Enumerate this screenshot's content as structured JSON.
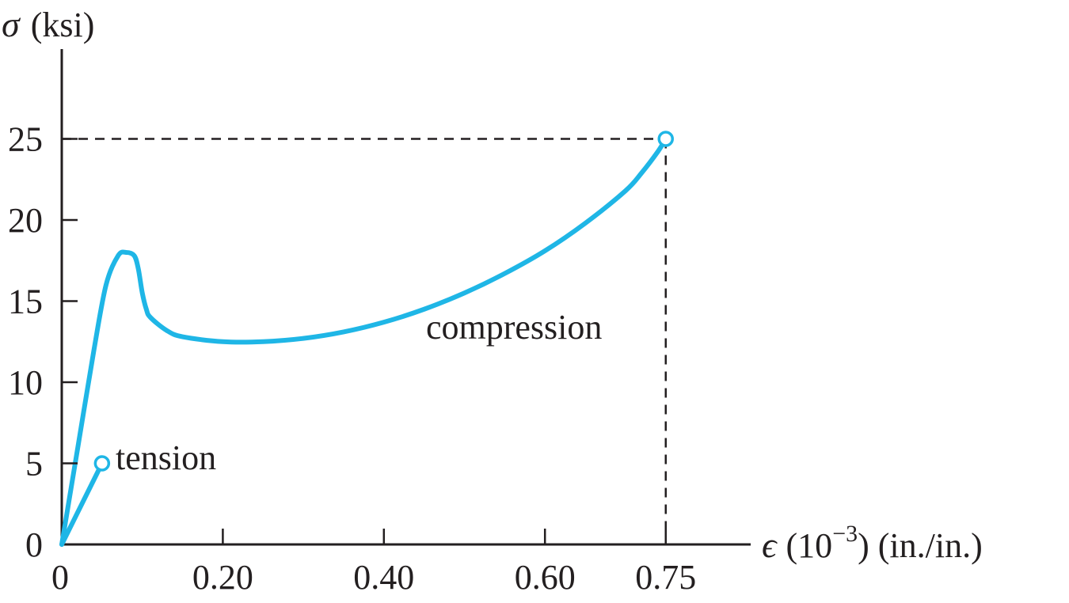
{
  "chart_data": {
    "type": "line",
    "title": "",
    "ylabel": {
      "symbol": "σ",
      "unit": "(ksi)"
    },
    "xlabel": {
      "symbol": "ϵ",
      "base": "(10",
      "exponent": "−3",
      "unit": ") (in./in.)"
    },
    "xlim": [
      0,
      0.85
    ],
    "ylim": [
      0,
      30
    ],
    "x_ticks": [
      {
        "value": 0,
        "label": "0"
      },
      {
        "value": 0.2,
        "label": "0.20"
      },
      {
        "value": 0.4,
        "label": "0.40"
      },
      {
        "value": 0.6,
        "label": "0.60"
      },
      {
        "value": 0.75,
        "label": "0.75"
      }
    ],
    "y_ticks": [
      {
        "value": 0,
        "label": "0"
      },
      {
        "value": 5,
        "label": "5"
      },
      {
        "value": 10,
        "label": "10"
      },
      {
        "value": 15,
        "label": "15"
      },
      {
        "value": 20,
        "label": "20"
      },
      {
        "value": 25,
        "label": "25"
      }
    ],
    "grid": false,
    "series_color": "#1fb6e6",
    "reference_lines": [
      {
        "type": "dashed",
        "x": 0.75,
        "y": 25
      }
    ],
    "series": [
      {
        "name": "compression",
        "x": [
          0,
          0.02,
          0.04,
          0.055,
          0.07,
          0.08,
          0.09,
          0.095,
          0.1,
          0.105,
          0.11,
          0.13,
          0.15,
          0.2,
          0.25,
          0.3,
          0.35,
          0.4,
          0.45,
          0.5,
          0.55,
          0.6,
          0.65,
          0.7,
          0.72,
          0.74,
          0.75
        ],
        "y": [
          0,
          6,
          12,
          16,
          17.8,
          18.0,
          17.8,
          17.0,
          15.5,
          14.5,
          14.0,
          13.2,
          12.8,
          12.5,
          12.5,
          12.7,
          13.1,
          13.7,
          14.5,
          15.5,
          16.7,
          18.1,
          19.8,
          21.8,
          22.9,
          24.2,
          25
        ]
      },
      {
        "name": "tension",
        "x": [
          0,
          0.05
        ],
        "y": [
          0,
          5
        ]
      }
    ],
    "end_markers": [
      {
        "series": "compression",
        "x": 0.75,
        "y": 25
      },
      {
        "series": "tension",
        "x": 0.05,
        "y": 5
      }
    ]
  }
}
